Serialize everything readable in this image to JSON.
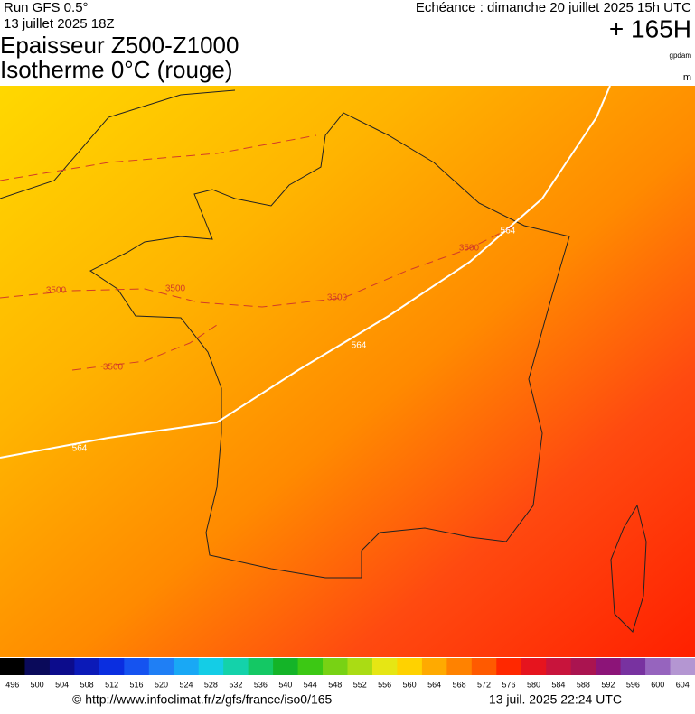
{
  "header": {
    "run": "Run GFS 0.5°",
    "date": "13 juillet 2025 18Z",
    "title_line1": "Epaisseur Z500-Z1000",
    "title_line2": "Isotherme 0°C (rouge)",
    "forecast": "Echéance : dimanche 20 juillet 2025 15h UTC",
    "lead": "+ 165H",
    "unit1": "gpdam",
    "unit2": "m"
  },
  "map": {
    "contour_labels": [
      564,
      564,
      564,
      3500,
      3500,
      3500,
      3500,
      3500
    ]
  },
  "legend": {
    "labels": [
      496,
      500,
      504,
      508,
      512,
      516,
      520,
      524,
      528,
      532,
      536,
      540,
      544,
      548,
      552,
      556,
      560,
      564,
      568,
      572,
      576,
      580,
      584,
      588,
      592,
      596,
      600,
      604
    ],
    "colors": [
      "#000000",
      "#0a0a5a",
      "#0c0c8c",
      "#0b1ab8",
      "#0a2ee0",
      "#1553f0",
      "#1f7ff5",
      "#19a8f5",
      "#14cde6",
      "#14d2aa",
      "#14c864",
      "#14b428",
      "#3cc814",
      "#78d214",
      "#aadc14",
      "#e6e614",
      "#ffd200",
      "#ffaa00",
      "#ff8200",
      "#ff5a00",
      "#ff2800",
      "#e6141e",
      "#c8143c",
      "#aa1450",
      "#8c1478",
      "#7832a0",
      "#9664be",
      "#b496d2"
    ]
  },
  "footer": {
    "source": "© http://www.infoclimat.fr/z/gfs/france/iso0/165",
    "timestamp": "13 juil. 2025 22:24 UTC"
  }
}
